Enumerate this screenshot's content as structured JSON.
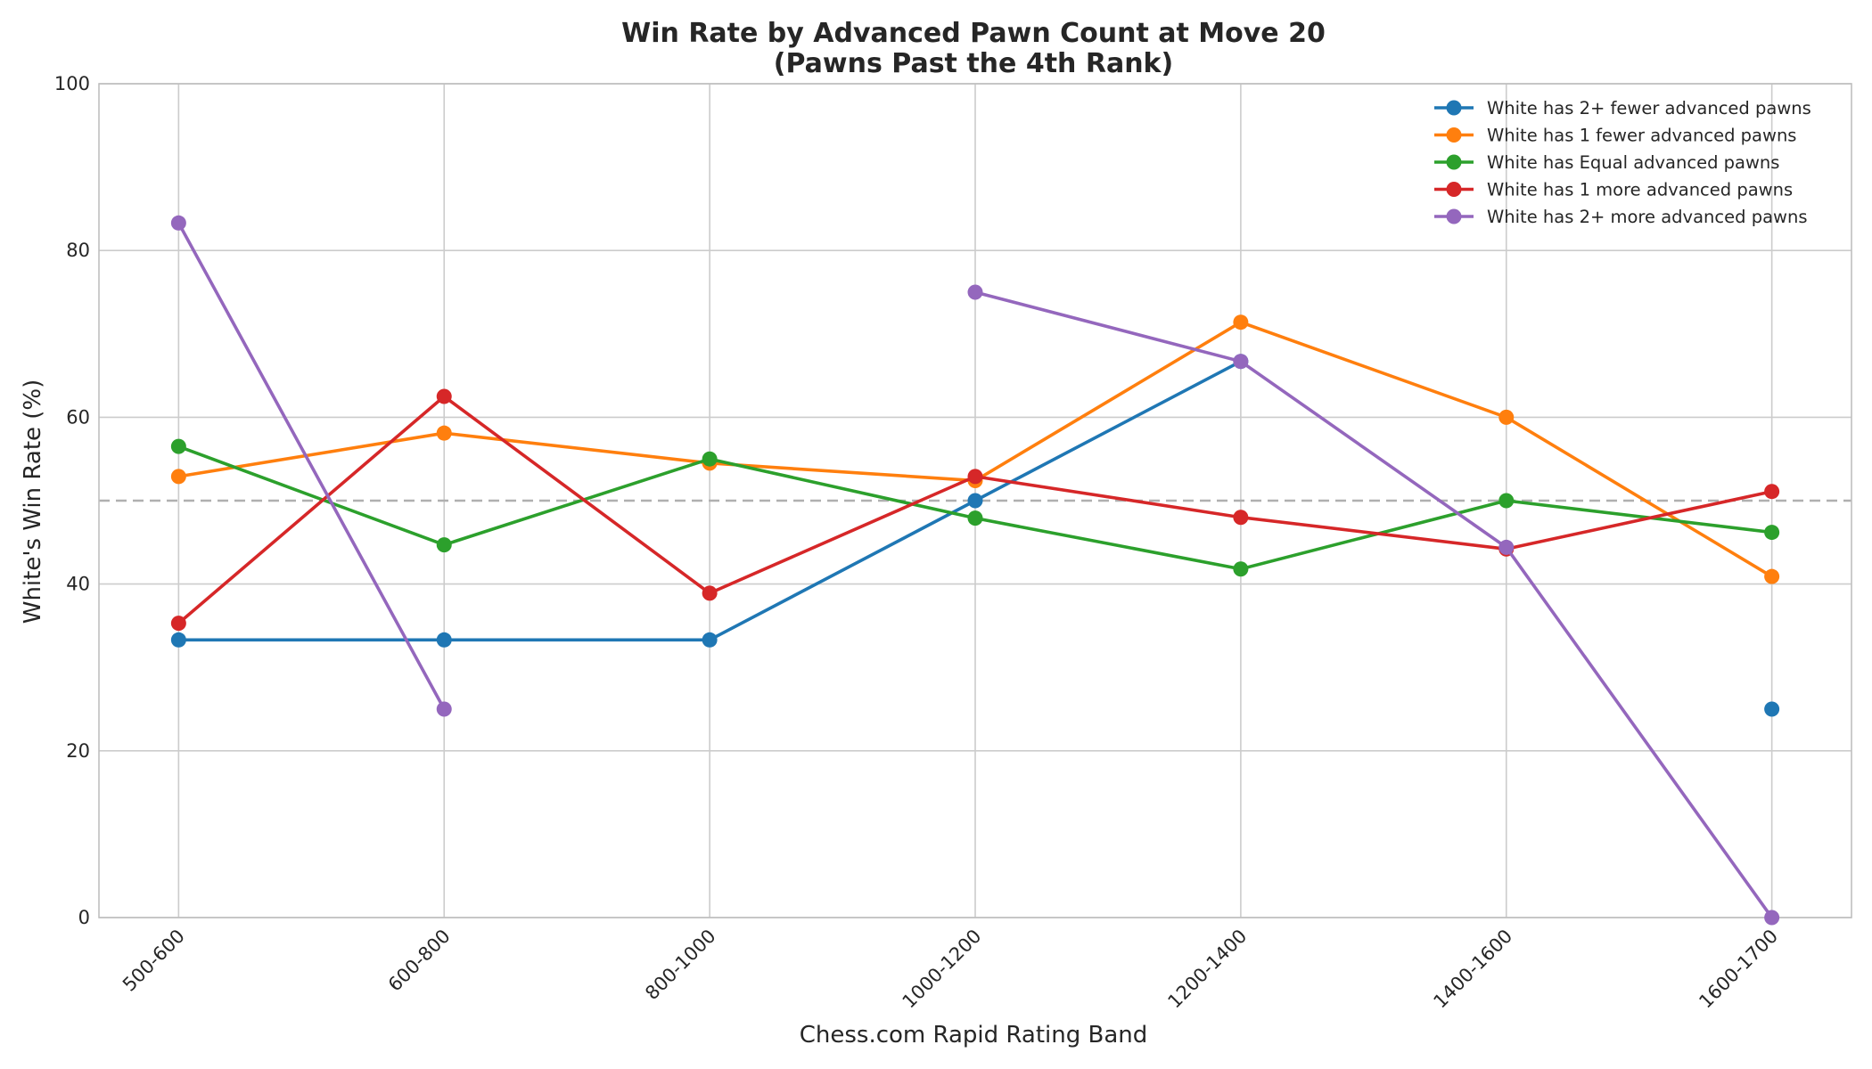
{
  "chart_data": {
    "type": "line",
    "title": "Win Rate by Advanced Pawn Count at Move 20",
    "subtitle": "(Pawns Past the 4th Rank)",
    "xlabel": "Chess.com Rapid Rating Band",
    "ylabel": "White's Win Rate (%)",
    "categories": [
      "500-600",
      "600-800",
      "800-1000",
      "1000-1200",
      "1200-1400",
      "1400-1600",
      "1600-1700"
    ],
    "ylim": [
      0,
      100
    ],
    "yticks": [
      0,
      20,
      40,
      60,
      80,
      100
    ],
    "grid": true,
    "legend_position": "top-right",
    "reference_line": {
      "y": 50,
      "style": "dashed",
      "color": "#b0b0b0"
    },
    "series": [
      {
        "name": "White has 2+ fewer advanced pawns",
        "color": "#1f77b4",
        "values": [
          33.3,
          33.3,
          33.3,
          50.0,
          66.7,
          null,
          25.0
        ]
      },
      {
        "name": "White has 1 fewer advanced pawns",
        "color": "#ff7f0e",
        "values": [
          52.9,
          58.1,
          54.5,
          52.4,
          71.4,
          60.0,
          40.9
        ]
      },
      {
        "name": "White has Equal advanced pawns",
        "color": "#2ca02c",
        "values": [
          56.5,
          44.7,
          55.0,
          47.9,
          41.8,
          50.0,
          46.2
        ]
      },
      {
        "name": "White has 1 more advanced pawns",
        "color": "#d62728",
        "values": [
          35.3,
          62.5,
          38.9,
          52.9,
          48.0,
          44.2,
          51.1
        ]
      },
      {
        "name": "White has 2+ more advanced pawns",
        "color": "#9467bd",
        "values": [
          83.3,
          25.0,
          null,
          75.0,
          66.7,
          44.4,
          0.0
        ]
      }
    ]
  }
}
